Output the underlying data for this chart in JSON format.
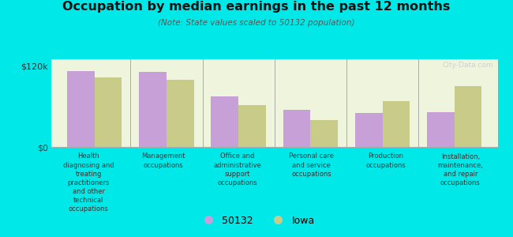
{
  "title": "Occupation by median earnings in the past 12 months",
  "subtitle": "(Note: State values scaled to 50132 population)",
  "categories": [
    "Health\ndiagnosing and\ntreating\npractitioners\nand other\ntechnical\noccupations",
    "Management\noccupations",
    "Office and\nadministrative\nsupport\noccupations",
    "Personal care\nand service\noccupations",
    "Production\noccupations",
    "Installation,\nmaintenance,\nand repair\noccupations"
  ],
  "values_50132": [
    113000,
    111000,
    75000,
    55000,
    50000,
    52000
  ],
  "values_iowa": [
    103000,
    100000,
    62000,
    40000,
    68000,
    90000
  ],
  "color_50132": "#c8a0d8",
  "color_iowa": "#c8cc88",
  "background_plot": "#eef5dc",
  "background_fig": "#00e8e8",
  "ylim": [
    0,
    130000
  ],
  "yticks": [
    0,
    120000
  ],
  "ytick_labels": [
    "$0",
    "$120k"
  ],
  "legend_label_50132": "50132",
  "legend_label_iowa": "Iowa",
  "watermark": "City-Data.com"
}
